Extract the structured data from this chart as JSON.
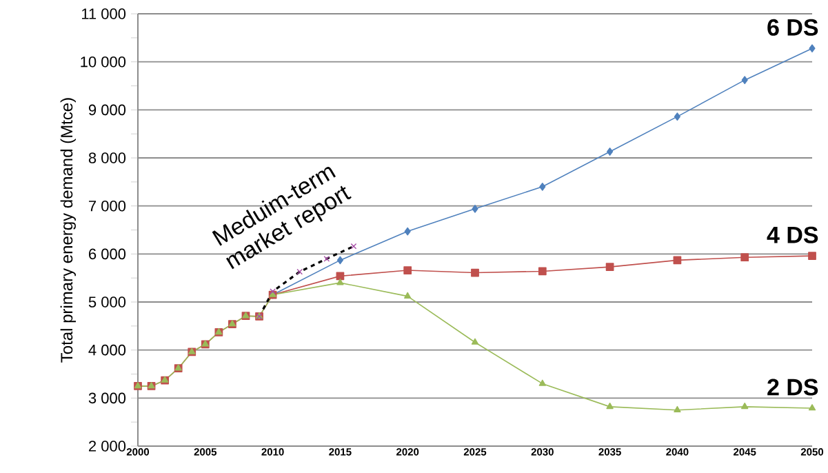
{
  "chart_data": {
    "type": "line",
    "ylabel": "Total primary energy demand (Mtce)",
    "xlim": [
      2000,
      2050
    ],
    "xticks": [
      2000,
      2005,
      2010,
      2015,
      2020,
      2025,
      2030,
      2035,
      2040,
      2045,
      2050
    ],
    "ylim": [
      2000,
      11000
    ],
    "yticks": [
      {
        "value": 2000,
        "label": "2 000"
      },
      {
        "value": 2500,
        "label": null
      },
      {
        "value": 3000,
        "label": "3 000"
      },
      {
        "value": 3500,
        "label": null
      },
      {
        "value": 4000,
        "label": "4 000"
      },
      {
        "value": 4500,
        "label": null
      },
      {
        "value": 5000,
        "label": "5 000"
      },
      {
        "value": 5500,
        "label": null
      },
      {
        "value": 6000,
        "label": "6 000"
      },
      {
        "value": 6500,
        "label": null
      },
      {
        "value": 7000,
        "label": "7 000"
      },
      {
        "value": 7500,
        "label": null
      },
      {
        "value": 8000,
        "label": "8 000"
      },
      {
        "value": 8500,
        "label": null
      },
      {
        "value": 9000,
        "label": "9 000"
      },
      {
        "value": 9500,
        "label": null
      },
      {
        "value": 10000,
        "label": "10 000"
      },
      {
        "value": 10500,
        "label": null
      },
      {
        "value": 11000,
        "label": "11 000"
      }
    ],
    "grid": "y",
    "legend": false,
    "series": [
      {
        "name": "6 DS",
        "color": "#4f81bd",
        "marker": "diamond",
        "x": [
          2010,
          2015,
          2020,
          2025,
          2030,
          2035,
          2040,
          2045,
          2050
        ],
        "values": [
          5150,
          5870,
          6470,
          6940,
          7400,
          8130,
          8860,
          9620,
          10280
        ]
      },
      {
        "name": "4 DS",
        "color": "#c0504d",
        "marker": "square",
        "x": [
          2000,
          2001,
          2002,
          2003,
          2004,
          2005,
          2006,
          2007,
          2008,
          2009,
          2010,
          2015,
          2020,
          2025,
          2030,
          2035,
          2040,
          2045,
          2050
        ],
        "values": [
          3250,
          3250,
          3370,
          3620,
          3960,
          4120,
          4370,
          4540,
          4710,
          4700,
          5150,
          5540,
          5660,
          5610,
          5640,
          5730,
          5870,
          5930,
          5960
        ]
      },
      {
        "name": "2 DS",
        "color": "#9bbb59",
        "marker": "triangle",
        "x": [
          2000,
          2001,
          2002,
          2003,
          2004,
          2005,
          2006,
          2007,
          2008,
          2009,
          2010,
          2015,
          2020,
          2025,
          2030,
          2035,
          2040,
          2045,
          2050
        ],
        "values": [
          3250,
          3250,
          3370,
          3620,
          3960,
          4120,
          4370,
          4540,
          4710,
          4700,
          5150,
          5400,
          5120,
          4160,
          3300,
          2820,
          2750,
          2820,
          2790
        ]
      },
      {
        "name": "Meduim-term market report",
        "color": "#000000",
        "marker": "cross",
        "line_style": "dashed",
        "x": [
          2009,
          2010,
          2012,
          2014,
          2016
        ],
        "values": [
          4700,
          5220,
          5630,
          5900,
          6160
        ]
      }
    ]
  }
}
